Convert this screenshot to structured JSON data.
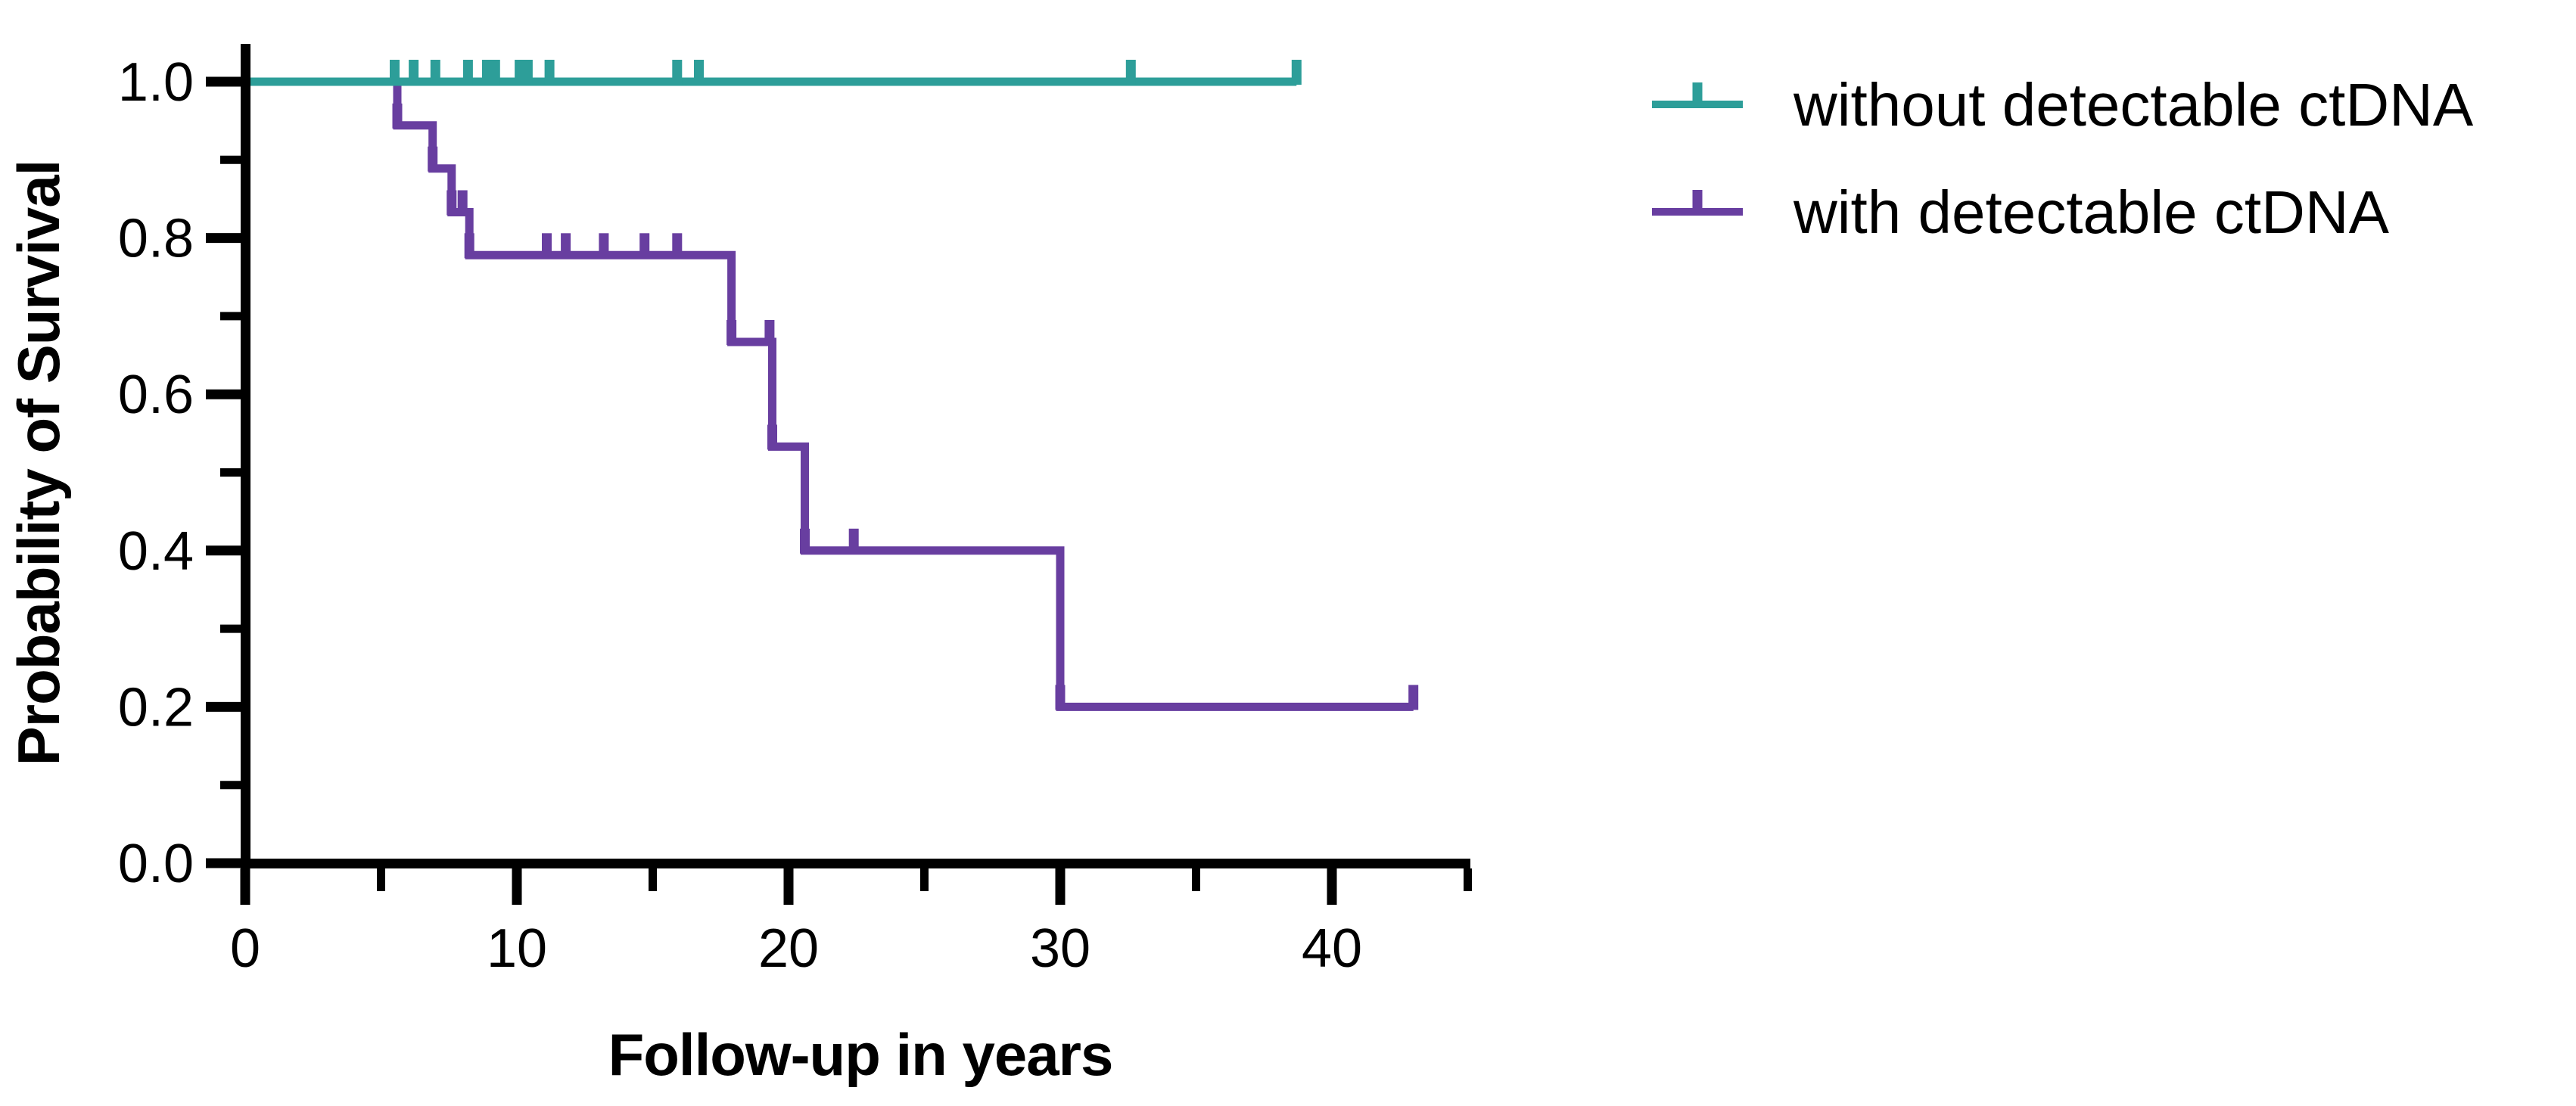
{
  "figure": {
    "background": "#ffffff",
    "text_color": "#000000"
  },
  "chart_data": {
    "type": "line",
    "subtype": "kaplan-meier-survival-step",
    "title": "",
    "xlabel": "Follow-up in years",
    "ylabel": "Probability of Survival",
    "xlim": [
      0,
      45
    ],
    "ylim": [
      0.0,
      1.0
    ],
    "grid": false,
    "legend_position": "outside-top-right",
    "x_ticks": {
      "major": [
        0,
        10,
        20,
        30,
        40
      ],
      "major_labels": [
        "0",
        "10",
        "20",
        "30",
        "40"
      ],
      "minor": [
        5,
        15,
        25,
        35,
        45
      ]
    },
    "y_ticks": {
      "major": [
        1.0,
        0.8,
        0.6,
        0.4,
        0.2,
        0.0
      ],
      "major_labels": [
        "1.0",
        "0.8",
        "0.6",
        "0.4",
        "0.2",
        "0.0"
      ],
      "minor": [
        0.9,
        0.7,
        0.5,
        0.3,
        0.1
      ]
    },
    "series": [
      {
        "name": "with detectable ctDNA",
        "color": "#683EA0",
        "steps": [
          [
            0,
            1.0
          ],
          [
            5.6,
            1.0
          ],
          [
            5.6,
            0.944
          ],
          [
            6.9,
            0.944
          ],
          [
            6.9,
            0.889
          ],
          [
            7.6,
            0.889
          ],
          [
            7.6,
            0.833
          ],
          [
            8.25,
            0.833
          ],
          [
            8.25,
            0.778
          ],
          [
            17.9,
            0.778
          ],
          [
            17.9,
            0.667
          ],
          [
            19.4,
            0.667
          ],
          [
            19.4,
            0.533
          ],
          [
            20.6,
            0.533
          ],
          [
            20.6,
            0.4
          ],
          [
            30.0,
            0.4
          ],
          [
            30.0,
            0.2
          ],
          [
            43.0,
            0.2
          ]
        ],
        "censor_ticks": [
          [
            5.6,
            0.944
          ],
          [
            6.9,
            0.889
          ],
          [
            7.6,
            0.833
          ],
          [
            8.0,
            0.833
          ],
          [
            8.25,
            0.778
          ],
          [
            11.1,
            0.778
          ],
          [
            11.8,
            0.778
          ],
          [
            13.2,
            0.778
          ],
          [
            14.7,
            0.778
          ],
          [
            15.9,
            0.778
          ],
          [
            17.9,
            0.667
          ],
          [
            19.3,
            0.667
          ],
          [
            19.4,
            0.533
          ],
          [
            20.6,
            0.4
          ],
          [
            22.4,
            0.4
          ],
          [
            30.0,
            0.2
          ],
          [
            43.0,
            0.2
          ]
        ]
      },
      {
        "name": "without detectable ctDNA",
        "color": "#2D9E99",
        "steps": [
          [
            0,
            1.0
          ],
          [
            38.7,
            1.0
          ]
        ],
        "censor_ticks": [
          [
            5.5,
            1.0
          ],
          [
            6.2,
            1.0
          ],
          [
            7.0,
            1.0
          ],
          [
            8.2,
            1.0
          ],
          [
            8.9,
            1.0
          ],
          [
            9.2,
            1.0
          ],
          [
            10.1,
            1.0
          ],
          [
            10.4,
            1.0
          ],
          [
            11.2,
            1.0
          ],
          [
            15.9,
            1.0
          ],
          [
            16.7,
            1.0
          ],
          [
            32.6,
            1.0
          ],
          [
            38.7,
            1.0
          ]
        ]
      }
    ],
    "legend_order": [
      1,
      0
    ]
  }
}
